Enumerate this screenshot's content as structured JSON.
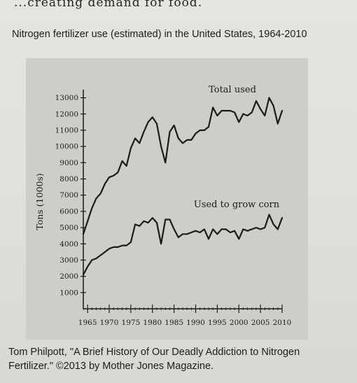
{
  "header": {
    "cut_text": "...creating demand for food."
  },
  "figure": {
    "title": "Nitrogen fertilizer use (estimated) in the United States, 1964-2010",
    "caption_line1": "Tom Philpott, \"A Brief History of Our Deadly Addiction to Nitrogen",
    "caption_line2": "Fertilizer.\" ©2013 by Mother Jones Magazine."
  },
  "colors": {
    "line": "#1a1a1a",
    "panel": "#cfcdc9",
    "paper": "#e3e1dc"
  },
  "chart_data": {
    "type": "line",
    "title": "Nitrogen fertilizer use (estimated) in the United States, 1964-2010",
    "xlabel": "",
    "ylabel": "Tons (1000s)",
    "xlim": [
      1964,
      2010
    ],
    "ylim": [
      0,
      13500
    ],
    "xticks": [
      1965,
      1970,
      1975,
      1980,
      1985,
      1990,
      1995,
      2000,
      2005,
      2010
    ],
    "yticks": [
      1000,
      2000,
      3000,
      4000,
      5000,
      6000,
      7000,
      8000,
      9000,
      10000,
      11000,
      12000,
      13000
    ],
    "grid": false,
    "legend": "inline labels",
    "series": [
      {
        "name": "Total used",
        "x": [
          1964,
          1965,
          1966,
          1967,
          1968,
          1969,
          1970,
          1971,
          1972,
          1973,
          1974,
          1975,
          1976,
          1977,
          1978,
          1979,
          1980,
          1981,
          1982,
          1983,
          1984,
          1985,
          1986,
          1987,
          1988,
          1989,
          1990,
          1991,
          1992,
          1993,
          1994,
          1995,
          1996,
          1997,
          1998,
          1999,
          2000,
          2001,
          2002,
          2003,
          2004,
          2005,
          2006,
          2007,
          2008,
          2009,
          2010
        ],
        "values": [
          4600,
          5400,
          6200,
          6800,
          7100,
          7700,
          8100,
          8200,
          8400,
          9100,
          8800,
          9900,
          10500,
          10200,
          10900,
          11500,
          11800,
          11400,
          10000,
          9000,
          10900,
          11300,
          10500,
          10200,
          10400,
          10400,
          10800,
          11000,
          11000,
          11200,
          12400,
          11900,
          12200,
          12200,
          12200,
          12100,
          11500,
          12000,
          11900,
          12100,
          12800,
          12300,
          11900,
          13000,
          12500,
          11400,
          12200
        ]
      },
      {
        "name": "Used to grow corn",
        "x": [
          1964,
          1965,
          1966,
          1967,
          1968,
          1969,
          1970,
          1971,
          1972,
          1973,
          1974,
          1975,
          1976,
          1977,
          1978,
          1979,
          1980,
          1981,
          1982,
          1983,
          1984,
          1985,
          1986,
          1987,
          1988,
          1989,
          1990,
          1991,
          1992,
          1993,
          1994,
          1995,
          1996,
          1997,
          1998,
          1999,
          2000,
          2001,
          2002,
          2003,
          2004,
          2005,
          2006,
          2007,
          2008,
          2009,
          2010
        ],
        "values": [
          2100,
          2600,
          3000,
          3100,
          3300,
          3500,
          3700,
          3800,
          3800,
          3900,
          3900,
          4100,
          5200,
          5100,
          5400,
          5300,
          5600,
          5300,
          4000,
          5500,
          5500,
          4900,
          4400,
          4600,
          4600,
          4700,
          4800,
          4700,
          4900,
          4300,
          4900,
          4600,
          4900,
          4900,
          4700,
          4800,
          4300,
          4900,
          4800,
          4900,
          5000,
          4900,
          5000,
          5800,
          5200,
          4900,
          5600
        ]
      }
    ]
  }
}
